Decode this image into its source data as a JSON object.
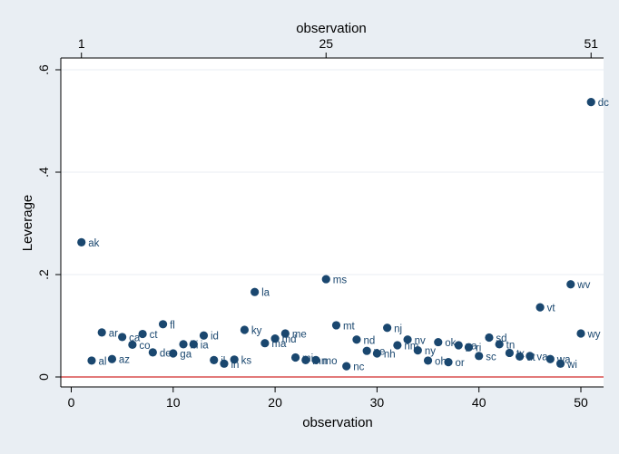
{
  "chart_data": {
    "type": "scatter",
    "xlabel": "observation",
    "ylabel": "Leverage",
    "top_axis_label": "observation",
    "xlim": [
      0,
      51
    ],
    "ylim": [
      0,
      0.6
    ],
    "xticks": [
      0,
      10,
      20,
      30,
      40,
      50
    ],
    "xtick_labels": [
      "0",
      "10",
      "20",
      "30",
      "40",
      "50"
    ],
    "yticks": [
      0,
      0.2,
      0.4,
      0.6
    ],
    "ytick_labels": [
      "0",
      ".2",
      ".4",
      ".6"
    ],
    "top_ticks": [
      1,
      25,
      51
    ],
    "top_tick_labels": [
      "1",
      "25",
      "51"
    ],
    "reference_line_y": 0,
    "grid": "horizontal",
    "colors": {
      "marker": "#1a476f",
      "reference_line": "#d12b2b",
      "plot_bg": "#ffffff",
      "outer_bg": "#e9eef3",
      "grid": "#e9eef3"
    },
    "points": [
      {
        "x": 1,
        "y": 0.263,
        "label": "ak"
      },
      {
        "x": 2,
        "y": 0.032,
        "label": "al"
      },
      {
        "x": 3,
        "y": 0.087,
        "label": "ar"
      },
      {
        "x": 4,
        "y": 0.035,
        "label": "az"
      },
      {
        "x": 5,
        "y": 0.078,
        "label": "ca"
      },
      {
        "x": 6,
        "y": 0.063,
        "label": "co"
      },
      {
        "x": 7,
        "y": 0.084,
        "label": "ct"
      },
      {
        "x": 8,
        "y": 0.048,
        "label": "de"
      },
      {
        "x": 9,
        "y": 0.103,
        "label": "fl"
      },
      {
        "x": 10,
        "y": 0.046,
        "label": "ga"
      },
      {
        "x": 11,
        "y": 0.064,
        "label": "hi"
      },
      {
        "x": 12,
        "y": 0.064,
        "label": "ia"
      },
      {
        "x": 13,
        "y": 0.081,
        "label": "id"
      },
      {
        "x": 14,
        "y": 0.033,
        "label": "il"
      },
      {
        "x": 15,
        "y": 0.026,
        "label": "in"
      },
      {
        "x": 16,
        "y": 0.034,
        "label": "ks"
      },
      {
        "x": 17,
        "y": 0.092,
        "label": "ky"
      },
      {
        "x": 18,
        "y": 0.166,
        "label": "la"
      },
      {
        "x": 19,
        "y": 0.066,
        "label": "ma"
      },
      {
        "x": 20,
        "y": 0.075,
        "label": "md"
      },
      {
        "x": 21,
        "y": 0.085,
        "label": "me"
      },
      {
        "x": 22,
        "y": 0.038,
        "label": "mi"
      },
      {
        "x": 23,
        "y": 0.033,
        "label": "mn"
      },
      {
        "x": 24,
        "y": 0.033,
        "label": "mo"
      },
      {
        "x": 25,
        "y": 0.191,
        "label": "ms"
      },
      {
        "x": 26,
        "y": 0.101,
        "label": "mt"
      },
      {
        "x": 27,
        "y": 0.021,
        "label": "nc"
      },
      {
        "x": 28,
        "y": 0.073,
        "label": "nd"
      },
      {
        "x": 29,
        "y": 0.051,
        "label": "ne"
      },
      {
        "x": 30,
        "y": 0.046,
        "label": "nh"
      },
      {
        "x": 31,
        "y": 0.096,
        "label": "nj"
      },
      {
        "x": 32,
        "y": 0.062,
        "label": "nm"
      },
      {
        "x": 33,
        "y": 0.073,
        "label": "nv"
      },
      {
        "x": 34,
        "y": 0.052,
        "label": "ny"
      },
      {
        "x": 35,
        "y": 0.032,
        "label": "oh"
      },
      {
        "x": 36,
        "y": 0.068,
        "label": "ok"
      },
      {
        "x": 37,
        "y": 0.029,
        "label": "or"
      },
      {
        "x": 38,
        "y": 0.062,
        "label": "pa"
      },
      {
        "x": 39,
        "y": 0.058,
        "label": "ri"
      },
      {
        "x": 40,
        "y": 0.041,
        "label": "sc"
      },
      {
        "x": 41,
        "y": 0.077,
        "label": "sd"
      },
      {
        "x": 42,
        "y": 0.064,
        "label": "tn"
      },
      {
        "x": 43,
        "y": 0.047,
        "label": "tx"
      },
      {
        "x": 44,
        "y": 0.04,
        "label": "ut"
      },
      {
        "x": 45,
        "y": 0.041,
        "label": "va"
      },
      {
        "x": 46,
        "y": 0.136,
        "label": "vt"
      },
      {
        "x": 47,
        "y": 0.035,
        "label": "wa"
      },
      {
        "x": 48,
        "y": 0.026,
        "label": "wi"
      },
      {
        "x": 49,
        "y": 0.181,
        "label": "wv"
      },
      {
        "x": 50,
        "y": 0.085,
        "label": "wy"
      },
      {
        "x": 51,
        "y": 0.537,
        "label": "dc"
      }
    ]
  }
}
